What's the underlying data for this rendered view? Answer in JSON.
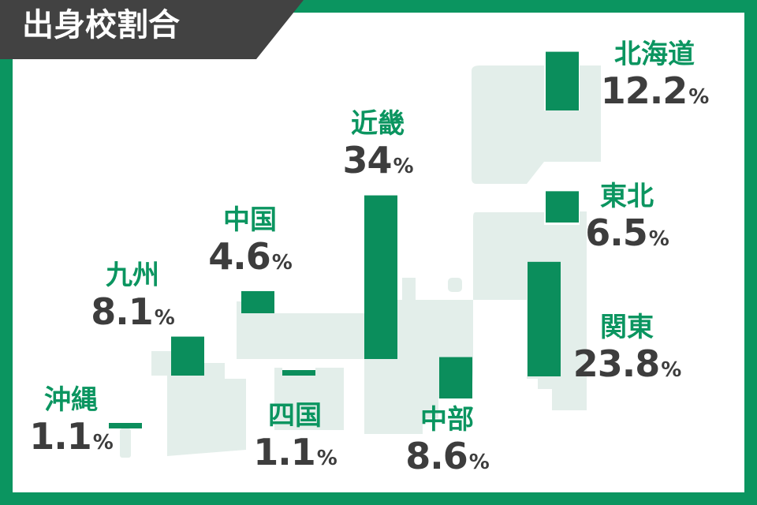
{
  "title": "出身校割合",
  "colors": {
    "frame": "#0b9560",
    "bar": "#0b8e5c",
    "map": "#e3eeea",
    "label": "#0b9560",
    "value": "#3d3d3d",
    "title_bg": "#424242",
    "title_text": "#ffffff"
  },
  "chart_data": {
    "type": "bar",
    "unit": "%",
    "categories": [
      "沖縄",
      "九州",
      "中国",
      "四国",
      "近畿",
      "中部",
      "関東",
      "東北",
      "北海道"
    ],
    "values": [
      1.1,
      8.1,
      4.6,
      1.1,
      34,
      8.6,
      23.8,
      6.5,
      12.2
    ],
    "value_labels": [
      "1.1",
      "8.1",
      "4.6",
      "1.1",
      "34",
      "8.6",
      "23.8",
      "6.5",
      "12.2"
    ]
  }
}
